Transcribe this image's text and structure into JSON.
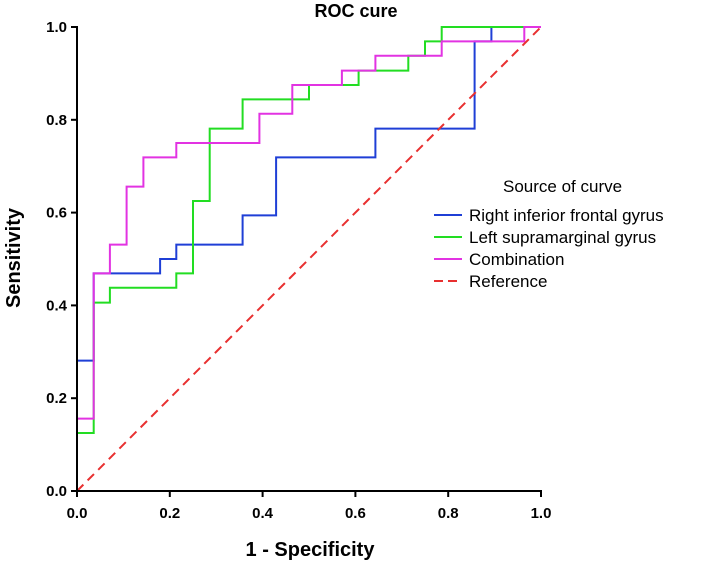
{
  "chart_data": {
    "type": "line",
    "title": "ROC cure",
    "xlabel": "1 - Specificity",
    "ylabel": "Sensitivity",
    "xlim": [
      0,
      1
    ],
    "ylim": [
      0,
      1
    ],
    "x_ticks": [
      "0.0",
      "0.2",
      "0.4",
      "0.6",
      "0.8",
      "1.0"
    ],
    "y_ticks": [
      "0.0",
      "0.2",
      "0.4",
      "0.6",
      "0.8",
      "1.0"
    ],
    "legend_title": "Source of curve",
    "legend_position": "right-middle",
    "series": [
      {
        "name": "Right inferior frontal gyrus",
        "color": "#1f3fd6",
        "dash": "solid",
        "points": [
          [
            0,
            0
          ],
          [
            0,
            0.156
          ],
          [
            0,
            0.281
          ],
          [
            0.036,
            0.281
          ],
          [
            0.036,
            0.438
          ],
          [
            0.036,
            0.469
          ],
          [
            0.179,
            0.469
          ],
          [
            0.179,
            0.5
          ],
          [
            0.214,
            0.5
          ],
          [
            0.214,
            0.531
          ],
          [
            0.357,
            0.531
          ],
          [
            0.357,
            0.594
          ],
          [
            0.429,
            0.594
          ],
          [
            0.429,
            0.719
          ],
          [
            0.643,
            0.719
          ],
          [
            0.643,
            0.781
          ],
          [
            0.857,
            0.781
          ],
          [
            0.857,
            0.969
          ],
          [
            0.893,
            0.969
          ],
          [
            0.893,
            1.0
          ],
          [
            1.0,
            1.0
          ]
        ]
      },
      {
        "name": "Left supramarginal gyrus",
        "color": "#22dd22",
        "dash": "solid",
        "points": [
          [
            0,
            0
          ],
          [
            0,
            0.125
          ],
          [
            0.036,
            0.125
          ],
          [
            0.036,
            0.406
          ],
          [
            0.071,
            0.406
          ],
          [
            0.071,
            0.438
          ],
          [
            0.214,
            0.438
          ],
          [
            0.214,
            0.469
          ],
          [
            0.25,
            0.469
          ],
          [
            0.25,
            0.625
          ],
          [
            0.286,
            0.625
          ],
          [
            0.286,
            0.781
          ],
          [
            0.357,
            0.781
          ],
          [
            0.357,
            0.844
          ],
          [
            0.5,
            0.844
          ],
          [
            0.5,
            0.875
          ],
          [
            0.607,
            0.875
          ],
          [
            0.607,
            0.906
          ],
          [
            0.714,
            0.906
          ],
          [
            0.714,
            0.938
          ],
          [
            0.75,
            0.938
          ],
          [
            0.75,
            0.969
          ],
          [
            0.786,
            0.969
          ],
          [
            0.786,
            1.0
          ],
          [
            1.0,
            1.0
          ]
        ]
      },
      {
        "name": "Combination",
        "color": "#e233e2",
        "dash": "solid",
        "points": [
          [
            0,
            0
          ],
          [
            0,
            0.156
          ],
          [
            0.036,
            0.156
          ],
          [
            0.036,
            0.469
          ],
          [
            0.071,
            0.469
          ],
          [
            0.071,
            0.531
          ],
          [
            0.107,
            0.531
          ],
          [
            0.107,
            0.656
          ],
          [
            0.143,
            0.656
          ],
          [
            0.143,
            0.719
          ],
          [
            0.214,
            0.719
          ],
          [
            0.214,
            0.75
          ],
          [
            0.393,
            0.75
          ],
          [
            0.393,
            0.813
          ],
          [
            0.464,
            0.813
          ],
          [
            0.464,
            0.844
          ],
          [
            0.464,
            0.875
          ],
          [
            0.571,
            0.875
          ],
          [
            0.571,
            0.906
          ],
          [
            0.643,
            0.906
          ],
          [
            0.643,
            0.938
          ],
          [
            0.786,
            0.938
          ],
          [
            0.786,
            0.969
          ],
          [
            0.964,
            0.969
          ],
          [
            0.964,
            1.0
          ],
          [
            1.0,
            1.0
          ]
        ]
      },
      {
        "name": "Reference",
        "color": "#e83030",
        "dash": "dashed",
        "points": [
          [
            0,
            0
          ],
          [
            1,
            1
          ]
        ]
      }
    ]
  }
}
